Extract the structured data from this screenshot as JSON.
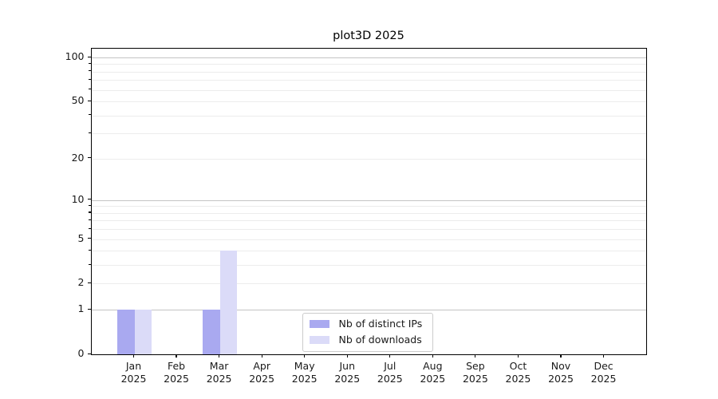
{
  "title": "plot3D 2025",
  "legend": {
    "items": [
      {
        "label": "Nb of distinct IPs",
        "color": "#a9a9f0"
      },
      {
        "label": "Nb of downloads",
        "color": "#dbdbf8"
      }
    ]
  },
  "axes": {
    "y_tick_labels": [
      "0",
      "1",
      "2",
      "5",
      "10",
      "20",
      "50",
      "100"
    ],
    "x_tick_months": [
      "Jan",
      "Feb",
      "Mar",
      "Apr",
      "May",
      "Jun",
      "Jul",
      "Aug",
      "Sep",
      "Oct",
      "Nov",
      "Dec"
    ],
    "x_tick_year": "2025"
  },
  "colors": {
    "background": "#ffffff",
    "spine": "#000000",
    "major_grid": "#c4c4c4",
    "minor_grid": "#ececec",
    "text": "#1a1a1a",
    "bar_distinct_ips": "#a9a9f0",
    "bar_downloads": "#dbdbf8"
  },
  "chart_data": {
    "type": "bar",
    "title": "plot3D 2025",
    "categories": [
      "Jan 2025",
      "Feb 2025",
      "Mar 2025",
      "Apr 2025",
      "May 2025",
      "Jun 2025",
      "Jul 2025",
      "Aug 2025",
      "Sep 2025",
      "Oct 2025",
      "Nov 2025",
      "Dec 2025"
    ],
    "series": [
      {
        "name": "Nb of distinct IPs",
        "color": "#a9a9f0",
        "values": [
          1,
          0,
          1,
          0,
          0,
          0,
          0,
          0,
          0,
          0,
          0,
          0
        ]
      },
      {
        "name": "Nb of downloads",
        "color": "#dbdbf8",
        "values": [
          1,
          0,
          4,
          0,
          0,
          0,
          0,
          0,
          0,
          0,
          0,
          0
        ]
      }
    ],
    "xlabel": "",
    "ylabel": "",
    "yscale": "log1p",
    "ylim": [
      0,
      115
    ],
    "y_major_tick_values": [
      1,
      10,
      100
    ],
    "y_labeled_tick_values": [
      0,
      1,
      2,
      5,
      10,
      20,
      50,
      100
    ],
    "y_minor_tick_values": [
      2,
      3,
      4,
      5,
      6,
      7,
      8,
      9,
      20,
      30,
      40,
      50,
      60,
      70,
      80,
      90
    ],
    "grid": "horizontal, major + minor",
    "legend_position": "lower center"
  }
}
